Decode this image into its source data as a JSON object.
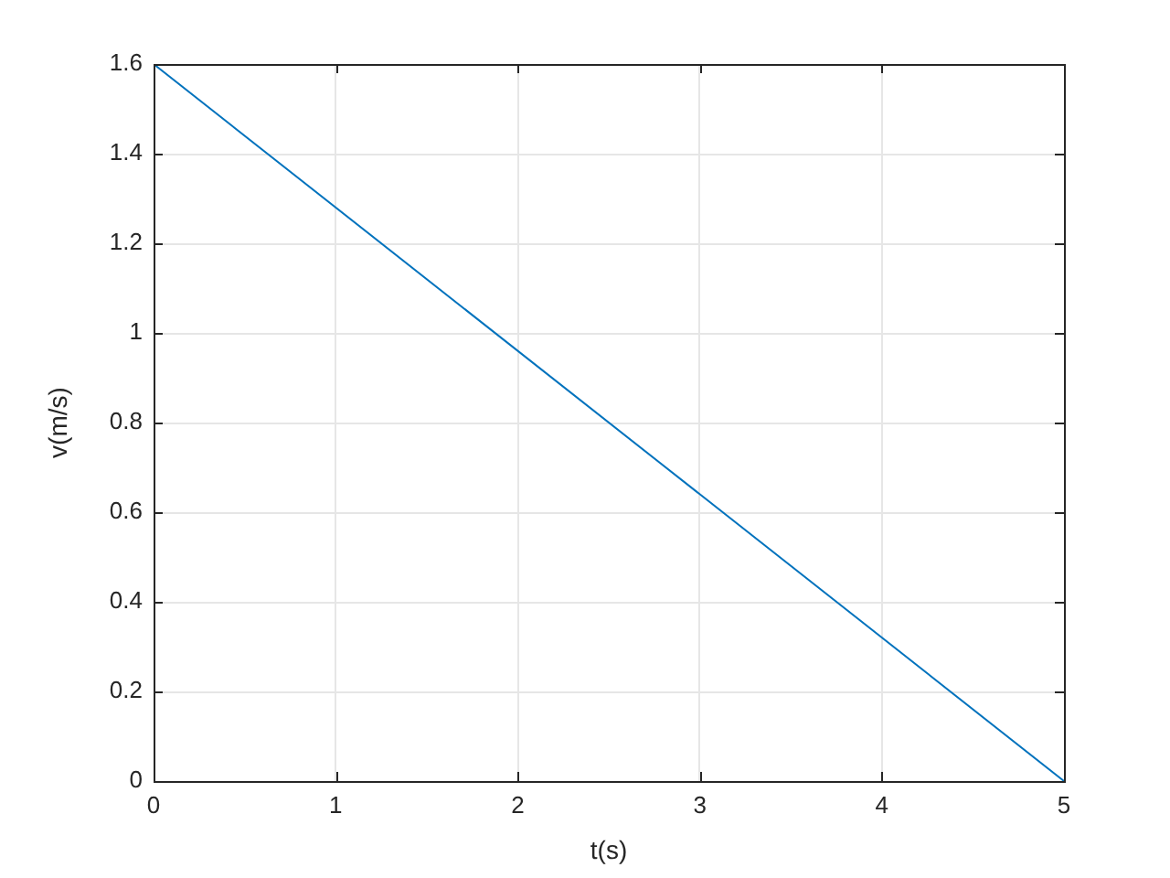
{
  "chart_data": {
    "type": "line",
    "xlabel": "t(s)",
    "ylabel": "v(m/s)",
    "x": [
      0,
      5
    ],
    "values": [
      1.6,
      0
    ],
    "color": "#0072bd",
    "xlim": [
      0,
      5
    ],
    "ylim": [
      0,
      1.6
    ],
    "xticks": [
      0,
      1,
      2,
      3,
      4,
      5
    ],
    "yticks": [
      0,
      0.2,
      0.4,
      0.6,
      0.8,
      1,
      1.2,
      1.4,
      1.6
    ],
    "grid": true
  }
}
